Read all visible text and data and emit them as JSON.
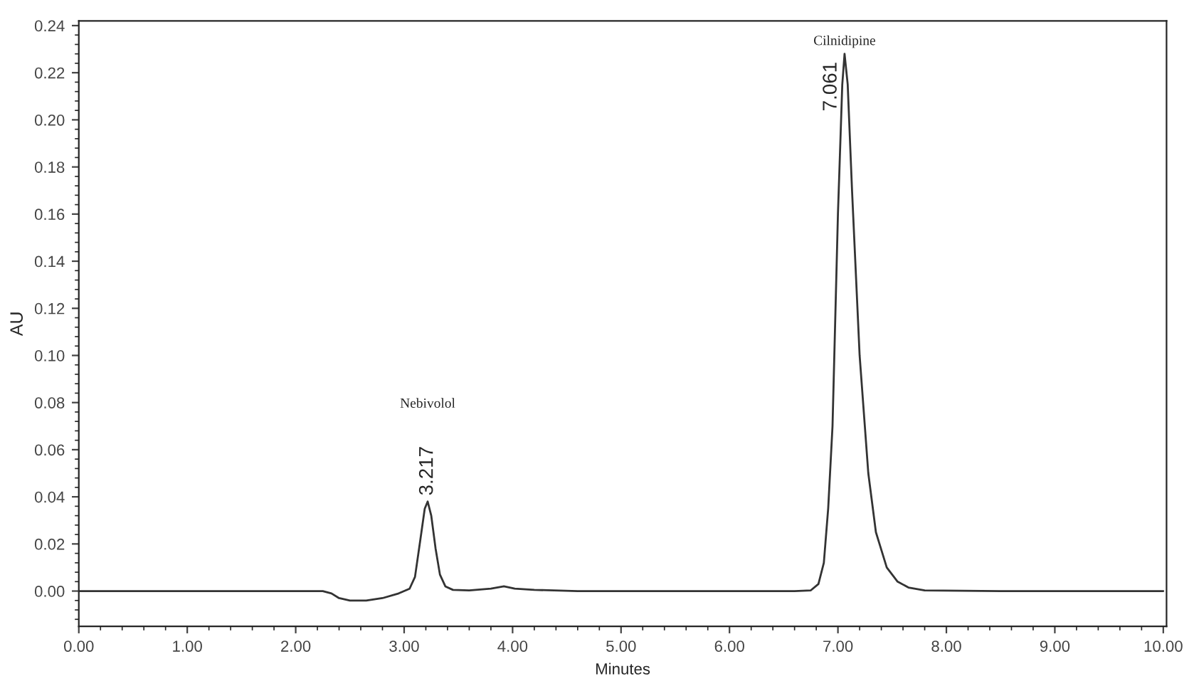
{
  "chart_data": {
    "type": "line",
    "xlabel": "Minutes",
    "ylabel": "AU",
    "x": [
      0,
      1.0,
      2.0,
      2.25,
      2.33,
      2.4,
      2.5,
      2.65,
      2.8,
      2.95,
      3.05,
      3.1,
      3.15,
      3.19,
      3.217,
      3.25,
      3.29,
      3.33,
      3.38,
      3.45,
      3.6,
      3.8,
      3.92,
      4.02,
      4.2,
      4.6,
      5.0,
      6.0,
      6.6,
      6.75,
      6.82,
      6.87,
      6.91,
      6.95,
      7.0,
      7.04,
      7.061,
      7.09,
      7.13,
      7.2,
      7.28,
      7.35,
      7.45,
      7.55,
      7.65,
      7.8,
      8.5,
      10.0
    ],
    "series": [
      {
        "color": "#333333",
        "values": [
          0,
          0,
          0,
          0,
          -0.001,
          -0.003,
          -0.004,
          -0.004,
          -0.003,
          -0.001,
          0.001,
          0.006,
          0.022,
          0.035,
          0.038,
          0.032,
          0.018,
          0.007,
          0.002,
          0.0005,
          0.0003,
          0.001,
          0.002,
          0.001,
          0.0005,
          0,
          0,
          0,
          0,
          0.0003,
          0.003,
          0.012,
          0.035,
          0.07,
          0.16,
          0.215,
          0.228,
          0.215,
          0.17,
          0.1,
          0.05,
          0.025,
          0.01,
          0.004,
          0.0015,
          0.0003,
          0,
          0
        ]
      }
    ],
    "xlim": [
      0,
      10.03
    ],
    "ylim": [
      -0.015,
      0.242
    ],
    "xticks": [
      {
        "value": 0,
        "label": "0.00"
      },
      {
        "value": 1,
        "label": "1.00"
      },
      {
        "value": 2,
        "label": "2.00"
      },
      {
        "value": 3,
        "label": "3.00"
      },
      {
        "value": 4,
        "label": "4.00"
      },
      {
        "value": 5,
        "label": "5.00"
      },
      {
        "value": 6,
        "label": "6.00"
      },
      {
        "value": 7,
        "label": "7.00"
      },
      {
        "value": 8,
        "label": "8.00"
      },
      {
        "value": 9,
        "label": "9.00"
      },
      {
        "value": 10,
        "label": "10.00"
      }
    ],
    "yticks": [
      {
        "value": 0,
        "label": "0.00"
      },
      {
        "value": 0.02,
        "label": "0.02"
      },
      {
        "value": 0.04,
        "label": "0.04"
      },
      {
        "value": 0.06,
        "label": "0.06"
      },
      {
        "value": 0.08,
        "label": "0.08"
      },
      {
        "value": 0.1,
        "label": "0.10"
      },
      {
        "value": 0.12,
        "label": "0.12"
      },
      {
        "value": 0.14,
        "label": "0.14"
      },
      {
        "value": 0.16,
        "label": "0.16"
      },
      {
        "value": 0.18,
        "label": "0.18"
      },
      {
        "value": 0.2,
        "label": "0.20"
      },
      {
        "value": 0.22,
        "label": "0.22"
      },
      {
        "value": 0.24,
        "label": "0.24"
      }
    ],
    "annotations": [
      "Nebivolol",
      {
        "text": "3.217",
        "x": 3.217,
        "y": 0.038
      },
      "Cilnidipine",
      {
        "text": "7.061",
        "x": 7.061,
        "y": 0.228
      }
    ],
    "grid": false,
    "legend": false
  }
}
